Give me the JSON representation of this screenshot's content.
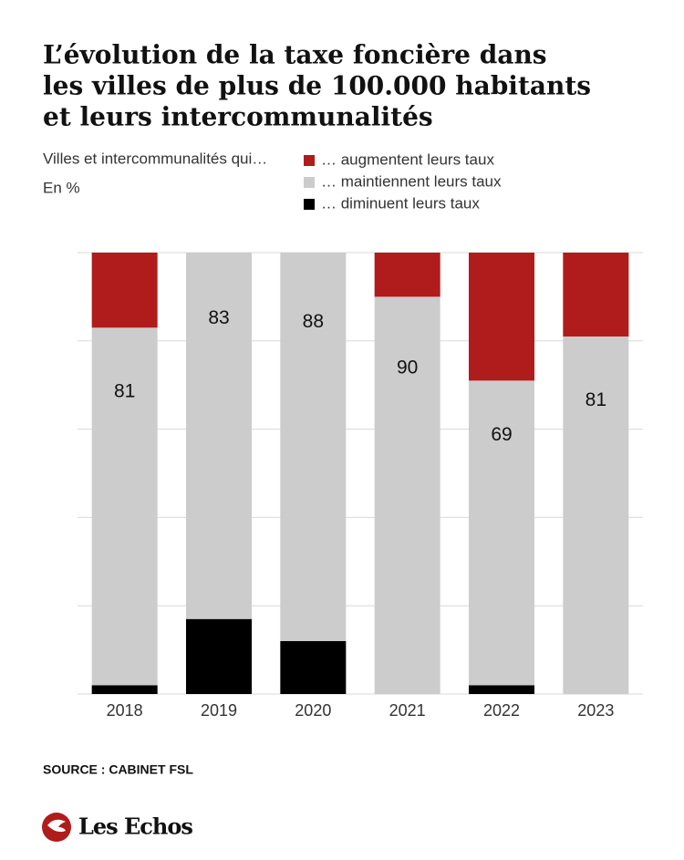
{
  "chart_data": {
    "type": "stacked-bar",
    "title": [
      "L’évolution de la taxe foncière dans",
      "les villes de plus de 100.000 habitants",
      "et leurs intercommunalités"
    ],
    "subtitle": "Villes et intercommunalités qui…",
    "unit": "En %",
    "categories": [
      "2018",
      "2019",
      "2020",
      "2021",
      "2022",
      "2023"
    ],
    "series": [
      {
        "name": "… augmentent leurs taux",
        "color": "#b01b1b",
        "values": [
          17,
          0,
          0,
          10,
          29,
          19
        ]
      },
      {
        "name": "… maintiennent leurs taux",
        "color": "#cccccc",
        "values": [
          81,
          83,
          88,
          90,
          69,
          81
        ]
      },
      {
        "name": "… diminuent leurs taux",
        "color": "#000000",
        "values": [
          2,
          17,
          12,
          0,
          2,
          0
        ]
      }
    ],
    "labeled_series": 1,
    "ylim": [
      0,
      100
    ],
    "yticks": [
      0,
      20,
      40,
      60,
      80,
      100
    ],
    "grid": true,
    "source": "SOURCE : CABINET FSL",
    "brand": "Les Echos"
  }
}
